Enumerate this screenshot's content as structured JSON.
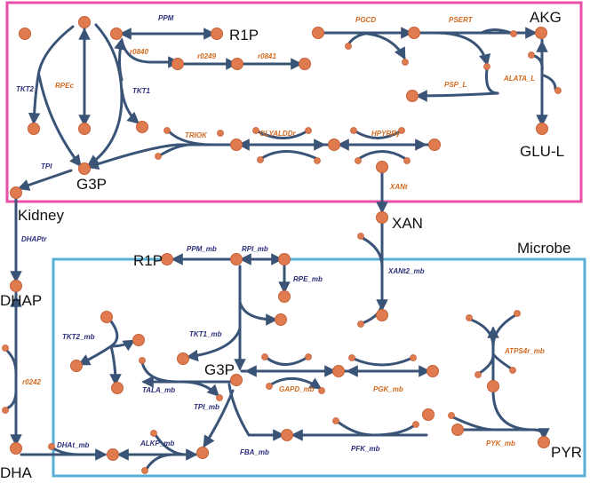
{
  "colors": {
    "kidney_box": "#e84fa6",
    "microbe_box": "#5aaed6",
    "edge": "#3a5478",
    "node": "#e07b4f",
    "kidney_reaction_text": "#d2691e",
    "transport_reaction_text": "#2b2f7a"
  },
  "compartments": {
    "kidney": "Kidney",
    "microbe": "Microbe"
  },
  "metabolites": {
    "r1p_kidney": "R1P",
    "akg": "AKG",
    "glu_l": "GLU-L",
    "g3p_kidney": "G3P",
    "xan": "XAN",
    "dhap": "DHAP",
    "dha": "DHA",
    "r1p_microbe": "R1P",
    "g3p_microbe": "G3P",
    "pyr": "PYR"
  },
  "reactions": {
    "ppm": "PPM",
    "r0840": "r0840",
    "r0249": "r0249",
    "r0841": "r0841",
    "tkt2": "TKT2",
    "rpec": "RPEc",
    "tkt1": "TKT1",
    "tpi": "TPI",
    "pgcd": "PGCD",
    "psert": "PSERT",
    "psp_l": "PSP_L",
    "alata_l": "ALATA_L",
    "triok": "TRIOK",
    "glyalddr": "GLYALDDr",
    "hpyrry": "HPYRRy",
    "xant": "XANt",
    "dhaptr": "DHAPtr",
    "xant2_mb": "XANt2_mb",
    "r0242": "r0242",
    "ppm_mb": "PPM_mb",
    "rpi_mb": "RPI_mb",
    "rpe_mb": "RPE_mb",
    "tkt1_mb": "TKT1_mb",
    "tkt2_mb": "TKT2_mb",
    "tala_mb": "TALA_mb",
    "tpi_mb": "TPI_mb",
    "gapd_mb": "GAPD_mb",
    "pgk_mb": "PGK_mb",
    "atps4r_mb": "ATPS4r_mb",
    "pyk_mb": "PYK_mb",
    "dhat_mb": "DHAt_mb",
    "alkp_mb": "ALKP_mb",
    "fba_mb": "FBA_mb",
    "pfk_mb": "PFK_mb"
  }
}
